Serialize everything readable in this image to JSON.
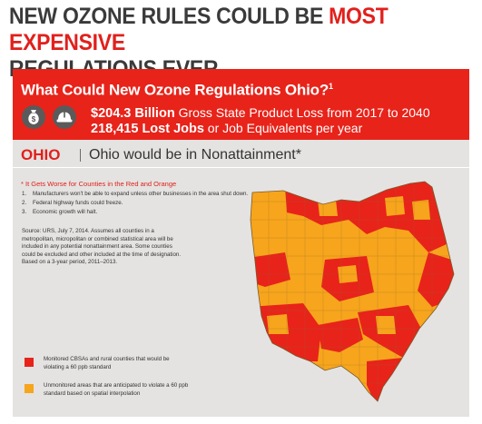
{
  "headline": {
    "line1_prefix": "NEW OZONE RULES COULD BE ",
    "line1_highlight": "MOST EXPENSIVE",
    "line2": "REGULATIONS EVER"
  },
  "banner": {
    "title": "What Could New Ozone Regulations Ohio?",
    "title_footnote": "1",
    "icons": [
      "money-bag-icon",
      "hard-hat-icon"
    ],
    "stat1_bold": "$204.3 Billion",
    "stat1_rest": " Gross State Product Loss from 2017 to 2040",
    "stat2_bold": "218,415 Lost Jobs",
    "stat2_rest": " or Job Equivalents per year"
  },
  "section": {
    "state": "OHIO",
    "subtitle": "Ohio would be in Nonattainment*"
  },
  "notes": {
    "worse_title": "* It Gets Worse for Counties in the Red and Orange",
    "worse_items": [
      {
        "num": "1.",
        "text": "Manufacturers won't be able to expand unless other businesses in the area shut down."
      },
      {
        "num": "2.",
        "text": "Federal highway funds could freeze."
      },
      {
        "num": "3.",
        "text": "Economic growth will halt."
      }
    ],
    "source": "Source: URS, July 7, 2014.  Assumes all counties in a metropolitan, micropolitan or combined statistical area will be included in any potential nonattainment area.  Some counties could be excluded and other included at the time of designation. Based on a 3-year period, 2011–2013."
  },
  "legend": [
    {
      "text": "Monitored CBSAs and rural counties that would be violating a 60 ppb standard",
      "color": "#e8231a"
    },
    {
      "text": "Unmonitored areas that are anticipated to violate a 60 ppb standard based on spatial interpolation",
      "color": "#f7a51c"
    }
  ],
  "colors": {
    "red": "#e8231a",
    "orange": "#f7a51c",
    "panel_gray": "#e4e3e1",
    "headline_gray": "#3a3a3a"
  }
}
